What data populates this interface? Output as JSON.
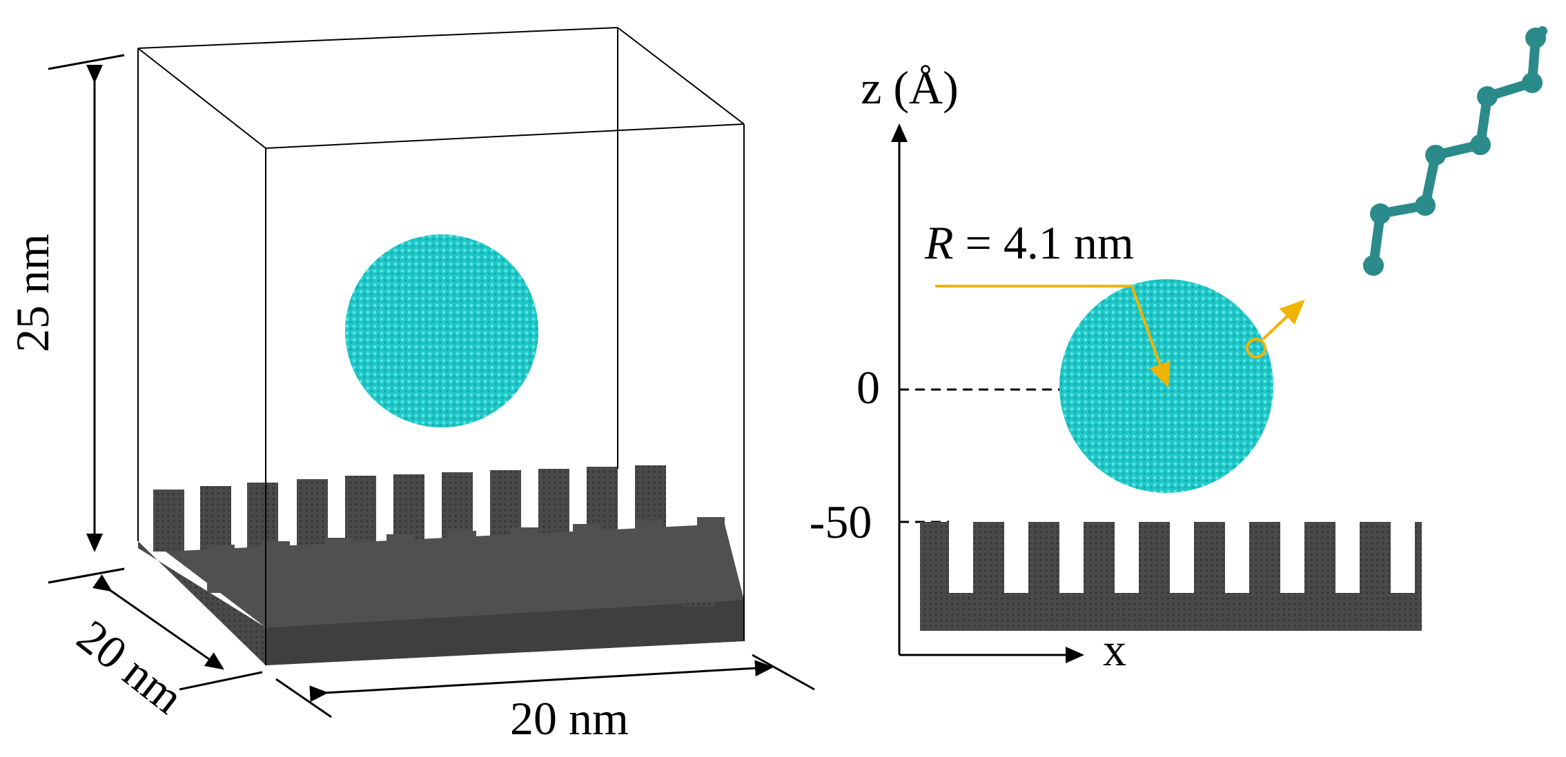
{
  "left_panel": {
    "height_label": "25 nm",
    "depth_label": "20 nm",
    "width_label": "20 nm"
  },
  "right_panel": {
    "z_axis_label": "z (Å)",
    "x_axis_label": "x",
    "z_tick_zero": "0",
    "z_tick_minus50": "-50",
    "radius_symbol": "R",
    "radius_value": " = 4.1 nm"
  },
  "colors": {
    "droplet": "#22cccc",
    "substrate": "#4a4a4a",
    "molecule": "#2b8a8a",
    "annotation": "#f0b400",
    "lines": "#000000"
  },
  "icons": [
    "cyan-droplet",
    "pillar-substrate",
    "alkane-molecule"
  ]
}
